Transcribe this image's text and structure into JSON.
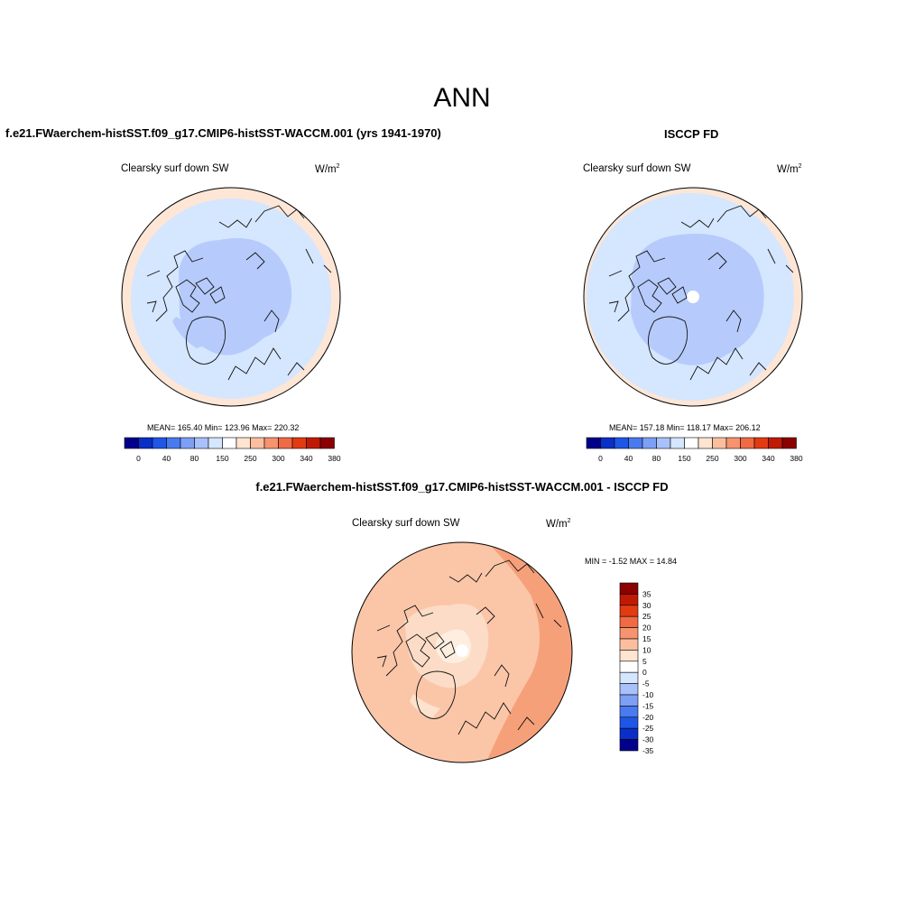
{
  "page_title": "ANN",
  "colors": {
    "blue_scale": [
      "#00008b",
      "#0a2fc8",
      "#1f56e6",
      "#4a7aef",
      "#7d9ff5",
      "#a9c1fa",
      "#d5e6ff"
    ],
    "neutral_light": "#ffffff",
    "red_scale": [
      "#ffe4d0",
      "#fbbf9f",
      "#f7936f",
      "#f06a44",
      "#e23b12",
      "#c01a05",
      "#8b0000"
    ],
    "diff_bg_red": "#f9b89a",
    "diff_bg_light": "#fcd8c1",
    "diff_bg_pale": "#fdebdc"
  },
  "panels": {
    "model": {
      "title": "f.e21.FWaerchem-histSST.f09_g17.CMIP6-histSST-WACCM.001 (yrs 1941-1970)",
      "variable": "Clearsky surf down SW",
      "units": "W/m",
      "units_sup": "2",
      "stats": "MEAN= 165.40  Min= 123.96  Max= 220.32",
      "colorbar_labels": [
        "0",
        "40",
        "80",
        "150",
        "250",
        "300",
        "340",
        "380"
      ]
    },
    "obs": {
      "title": "ISCCP FD",
      "variable": "Clearsky surf down SW",
      "units": "W/m",
      "units_sup": "2",
      "stats": "MEAN= 157.18  Min= 118.17  Max= 206.12",
      "colorbar_labels": [
        "0",
        "40",
        "80",
        "150",
        "250",
        "300",
        "340",
        "380"
      ]
    },
    "diff": {
      "title": "f.e21.FWaerchem-histSST.f09_g17.CMIP6-histSST-WACCM.001 - ISCCP FD",
      "variable": "Clearsky surf down SW",
      "units": "W/m",
      "units_sup": "2",
      "stats": "MIN =  -1.52 MAX =  14.84",
      "colorbar_labels": [
        "35",
        "30",
        "25",
        "20",
        "15",
        "10",
        "5",
        "0",
        "-5",
        "-10",
        "-15",
        "-20",
        "-25",
        "-30",
        "-35"
      ]
    }
  }
}
